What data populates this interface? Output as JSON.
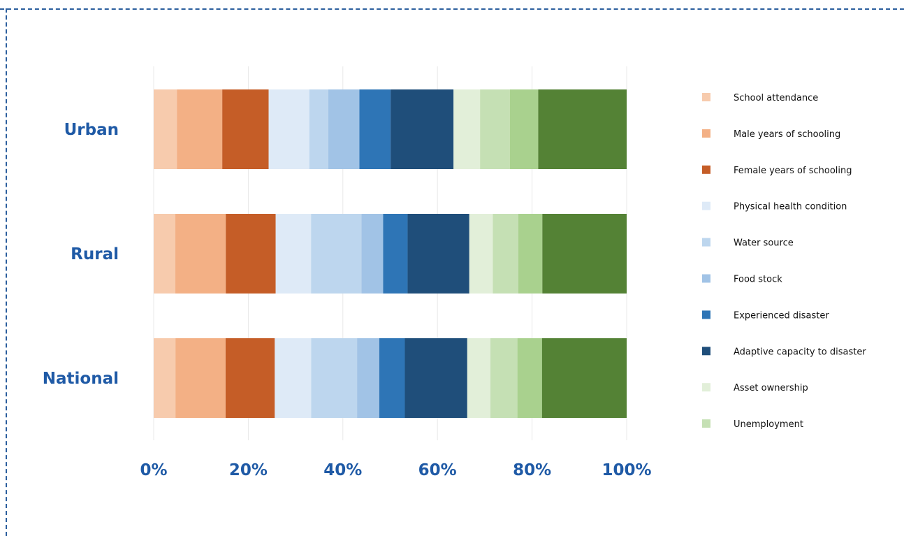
{
  "chart_data": {
    "type": "bar",
    "orientation": "horizontal",
    "stacked": true,
    "normalized": true,
    "categories": [
      "Urban",
      "Rural",
      "National"
    ],
    "x_ticks": [
      "0%",
      "20%",
      "40%",
      "60%",
      "80%",
      "100%"
    ],
    "xlim": [
      0,
      100
    ],
    "grid": true,
    "legend_position": "right",
    "legend": [
      "School attendance",
      "Male years of schooling",
      "Female years of schooling",
      "Physical health condition",
      "Water source",
      "Food stock",
      "Experienced disaster",
      "Adaptive capacity to disaster",
      "Asset ownership",
      "Unemployment"
    ],
    "series": [
      {
        "name": "School attendance",
        "color": "#f7cbad",
        "values": [
          4.9,
          4.6,
          4.6
        ]
      },
      {
        "name": "Male years of schooling",
        "color": "#f3b085",
        "values": [
          9.6,
          10.7,
          10.6
        ]
      },
      {
        "name": "Female years of schooling",
        "color": "#c55d27",
        "values": [
          9.8,
          10.6,
          10.4
        ]
      },
      {
        "name": "Physical health condition",
        "color": "#deeaf7",
        "values": [
          8.6,
          7.5,
          7.7
        ]
      },
      {
        "name": "Water source",
        "color": "#bdd6ee",
        "values": [
          4.0,
          10.7,
          9.7
        ]
      },
      {
        "name": "Food stock",
        "color": "#a1c3e6",
        "values": [
          6.6,
          4.6,
          4.7
        ]
      },
      {
        "name": "Experienced disaster",
        "color": "#2e75b6",
        "values": [
          6.6,
          5.2,
          5.4
        ]
      },
      {
        "name": "Adaptive capacity to disaster",
        "color": "#1f4e7a",
        "values": [
          13.3,
          13.1,
          13.2
        ]
      },
      {
        "name": "Asset ownership",
        "color": "#e2efd9",
        "values": [
          5.6,
          5.0,
          4.9
        ]
      },
      {
        "name": "Unemployment",
        "color": "#c5e0b4",
        "values": [
          6.3,
          5.4,
          5.7
        ]
      },
      {
        "color": "#a9d18e",
        "values": [
          6.0,
          5.1,
          5.2
        ]
      },
      {
        "color": "#548235",
        "values": [
          18.7,
          17.9,
          17.9
        ]
      }
    ]
  }
}
